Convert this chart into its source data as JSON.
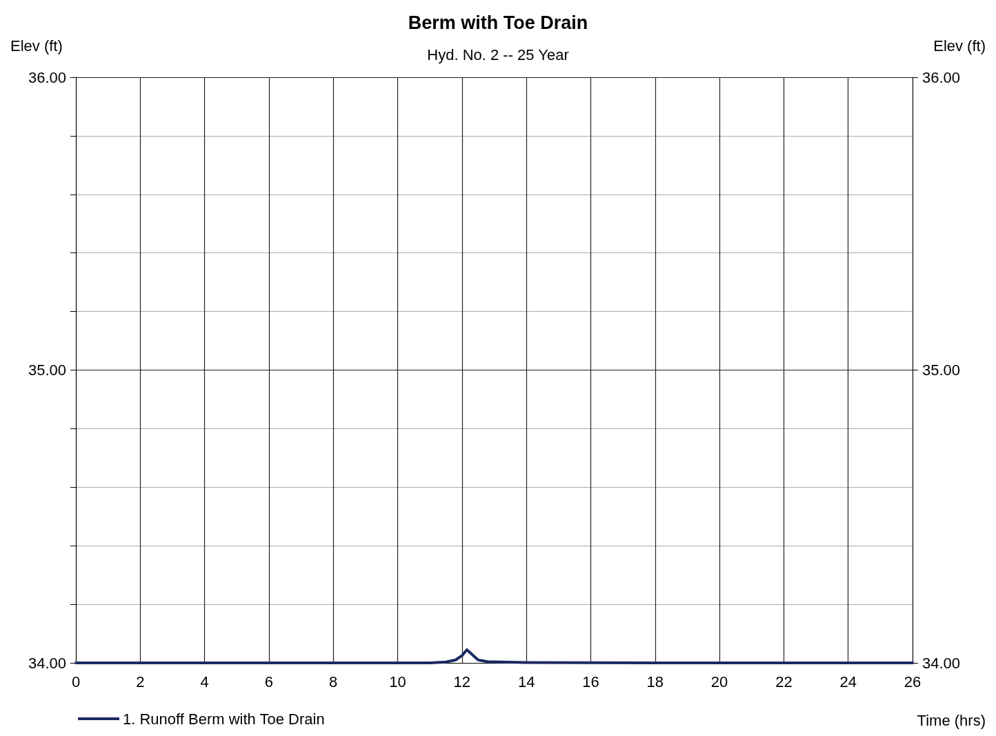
{
  "chart_data": {
    "type": "line",
    "title": "Berm with Toe Drain",
    "subtitle": "Hyd. No. 2 -- 25 Year",
    "xlabel": "Time (hrs)",
    "ylabel": "Elev (ft)",
    "y2label": "Elev (ft)",
    "series": [
      {
        "name": "1. Runoff Berm with Toe Drain",
        "color": "#1c2a63",
        "x": [
          0,
          4,
          8,
          11,
          11.5,
          11.8,
          12.0,
          12.15,
          12.3,
          12.5,
          12.8,
          14,
          18,
          26
        ],
        "values": [
          34.0,
          34.0,
          34.0,
          34.0,
          34.003,
          34.01,
          34.025,
          34.045,
          34.03,
          34.01,
          34.004,
          34.001,
          34.0,
          34.0
        ]
      }
    ],
    "xlim": [
      0,
      26
    ],
    "xticks": [
      0,
      2,
      4,
      6,
      8,
      10,
      12,
      14,
      16,
      18,
      20,
      22,
      24,
      26
    ],
    "ylim": [
      34,
      36
    ],
    "yticks": [
      {
        "value": 34,
        "label": "34.00"
      },
      {
        "value": 34.2,
        "label": null
      },
      {
        "value": 34.4,
        "label": null
      },
      {
        "value": 34.6,
        "label": null
      },
      {
        "value": 34.8,
        "label": null
      },
      {
        "value": 35,
        "label": "35.00"
      },
      {
        "value": 35.2,
        "label": null
      },
      {
        "value": 35.4,
        "label": null
      },
      {
        "value": 35.6,
        "label": null
      },
      {
        "value": 35.8,
        "label": null
      },
      {
        "value": 36,
        "label": "36.00"
      }
    ],
    "y2lim": [
      34,
      36
    ],
    "y2ticks": [
      {
        "value": 34,
        "label": "34.00"
      },
      {
        "value": 35,
        "label": "35.00"
      },
      {
        "value": 36,
        "label": "36.00"
      }
    ],
    "grid": true,
    "legend": "bottom left",
    "marker": "none",
    "line_style": "solid"
  }
}
